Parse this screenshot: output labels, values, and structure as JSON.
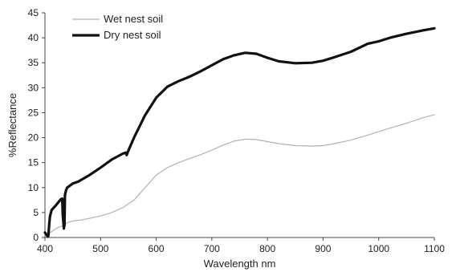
{
  "chart_data": {
    "type": "line",
    "xlabel": "Wavelength nm",
    "ylabel": "%Reflectance",
    "xlim": [
      400,
      1100
    ],
    "ylim": [
      0,
      45
    ],
    "x_ticks": [
      "400",
      "500",
      "600",
      "700",
      "800",
      "900",
      "1000",
      "1100"
    ],
    "y_ticks": [
      "0",
      "5",
      "10",
      "15",
      "20",
      "25",
      "30",
      "35",
      "40",
      "45"
    ],
    "grid": false,
    "legend": "top-left",
    "series": [
      {
        "name": "Wet nest soil",
        "color": "#b3b3b3",
        "x": [
          400,
          405,
          410,
          420,
          430,
          434,
          437,
          440,
          450,
          470,
          500,
          520,
          540,
          560,
          580,
          600,
          620,
          640,
          660,
          680,
          700,
          720,
          740,
          760,
          780,
          800,
          820,
          850,
          880,
          900,
          920,
          950,
          980,
          1000,
          1020,
          1050,
          1080,
          1100
        ],
        "values": [
          0.5,
          0.5,
          1.0,
          1.8,
          2.3,
          2.0,
          2.6,
          3.0,
          3.3,
          3.6,
          4.3,
          5.0,
          6.0,
          7.5,
          10.0,
          12.5,
          14.0,
          15.0,
          15.8,
          16.6,
          17.5,
          18.5,
          19.3,
          19.7,
          19.6,
          19.2,
          18.8,
          18.4,
          18.3,
          18.4,
          18.8,
          19.5,
          20.5,
          21.2,
          21.9,
          22.9,
          24.0,
          24.6
        ]
      },
      {
        "name": "Dry nest soil",
        "color": "#111111",
        "x": [
          400,
          403,
          405,
          406,
          408,
          409,
          412,
          420,
          428,
          431,
          432,
          434,
          435,
          436,
          438,
          440,
          450,
          460,
          480,
          500,
          520,
          540,
          545,
          547,
          550,
          560,
          580,
          600,
          620,
          640,
          660,
          680,
          700,
          720,
          740,
          760,
          780,
          800,
          820,
          850,
          880,
          900,
          920,
          950,
          980,
          1000,
          1020,
          1050,
          1080,
          1100
        ],
        "values": [
          1.0,
          0.5,
          0.2,
          0.3,
          3.0,
          4.2,
          5.5,
          6.5,
          7.6,
          7.8,
          4.5,
          1.8,
          2.5,
          8.5,
          9.5,
          10.0,
          10.8,
          11.2,
          12.5,
          14.0,
          15.6,
          16.8,
          17.0,
          16.5,
          17.4,
          20.0,
          24.5,
          28.0,
          30.2,
          31.3,
          32.2,
          33.3,
          34.5,
          35.7,
          36.5,
          37.0,
          36.8,
          36.0,
          35.3,
          34.9,
          35.0,
          35.4,
          36.1,
          37.2,
          38.8,
          39.3,
          40.0,
          40.8,
          41.5,
          41.9
        ]
      }
    ]
  }
}
